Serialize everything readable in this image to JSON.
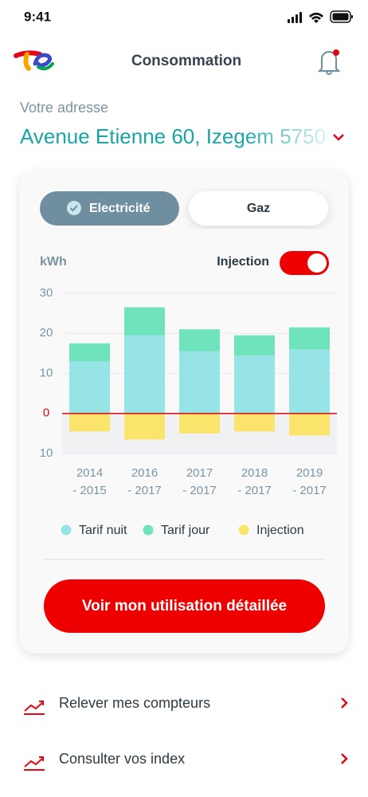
{
  "status_bar": {
    "time": "9:41"
  },
  "header": {
    "title": "Consommation"
  },
  "address": {
    "label": "Votre adresse",
    "value": "Avenue Etienne 60, Izegem 5750"
  },
  "tabs": [
    "Electricité",
    "Gaz"
  ],
  "toggle_label": "Injection",
  "chart_data": {
    "type": "stacked_bar",
    "y_label": "kWh",
    "categories": [
      [
        "2014",
        "- 2015"
      ],
      [
        "2016",
        "- 2017"
      ],
      [
        "2017",
        "- 2017"
      ],
      [
        "2018",
        "- 2017"
      ],
      [
        "2019",
        "- 2017"
      ]
    ],
    "series": [
      {
        "name": "Tarif nuit",
        "color": "#97e4e6",
        "values": [
          13,
          19.5,
          15.5,
          14.5,
          16
        ]
      },
      {
        "name": "Tarif jour",
        "color": "#6fe3bb",
        "values": [
          4.5,
          7,
          5.5,
          5,
          5.5
        ]
      },
      {
        "name": "Injection",
        "color": "#fbe46b",
        "values": [
          -4.5,
          -6.5,
          -5,
          -4.5,
          -5.5
        ]
      }
    ],
    "ylim": [
      -10,
      30
    ],
    "yticks": [
      30,
      20,
      10,
      0,
      {
        "value": -10,
        "label": "10"
      }
    ],
    "grid": true
  },
  "button": "Voir mon utilisation détaillée",
  "links": [
    "Relever mes compteurs",
    "Consulter vos index"
  ]
}
